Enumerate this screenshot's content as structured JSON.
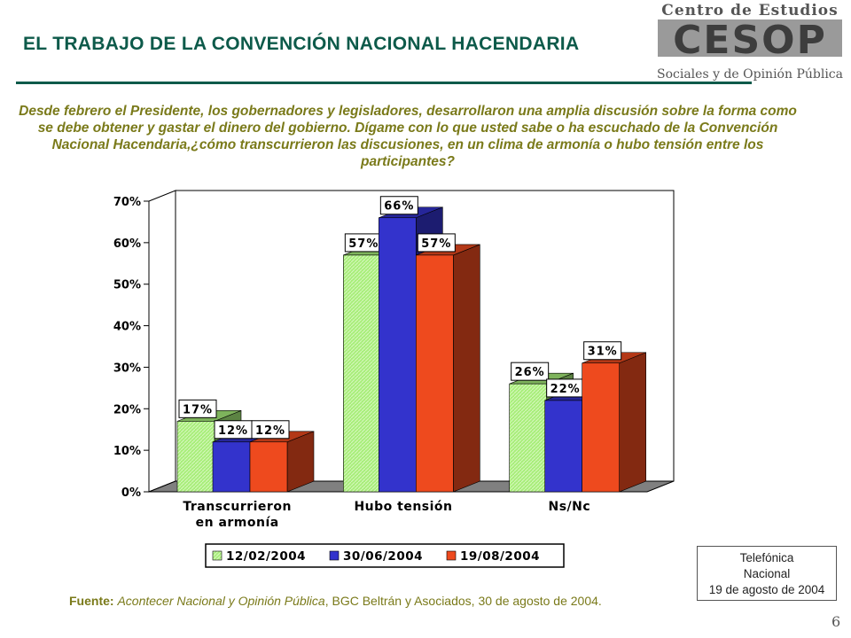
{
  "header": {
    "title": "EL TRABAJO DE LA CONVENCIÓN NACIONAL HACENDARIA",
    "logo_top": "Centro de Estudios",
    "logo_mark": "CESOP",
    "logo_bottom": "Sociales y de Opinión Pública"
  },
  "question": "Desde febrero el Presidente, los gobernadores y legisladores, desarrollaron una amplia discusión sobre la forma como se debe obtener y gastar el dinero del gobierno. Dígame con lo que usted sabe o ha escuchado de la Convención Nacional Hacendaria,¿cómo transcurrieron las discusiones, en un clima de armonía o hubo tensión entre los participantes?",
  "chart_data": {
    "type": "bar",
    "categories": [
      [
        "Transcurrieron",
        "en armonía"
      ],
      [
        "Hubo tensión"
      ],
      [
        "Ns/Nc"
      ]
    ],
    "series": [
      {
        "name": "12/02/2004",
        "values": [
          17,
          57,
          26
        ],
        "labels": [
          "17%",
          "57%",
          "26%"
        ],
        "color": "#a8ee7a"
      },
      {
        "name": "30/06/2004",
        "values": [
          12,
          66,
          22
        ],
        "labels": [
          "12%",
          "66%",
          "22%"
        ],
        "color": "#3333cc"
      },
      {
        "name": "19/08/2004",
        "values": [
          12,
          57,
          31
        ],
        "labels": [
          "12%",
          "57%",
          "31%"
        ],
        "color": "#ee4a1e"
      }
    ],
    "ylim": [
      0,
      70
    ],
    "yticks": [
      "0%",
      "10%",
      "20%",
      "30%",
      "40%",
      "50%",
      "60%",
      "70%"
    ],
    "grid": false,
    "legend_position": "bottom"
  },
  "footer": {
    "source_label": "Fuente:",
    "source_title": "Acontecer Nacional y Opinión Pública",
    "source_rest": ", BGC Beltrán y Asociados, 30 de agosto de 2004.",
    "note_line1": "Telefónica",
    "note_line2": "Nacional",
    "note_line3": "19 de agosto de 2004",
    "page_number": "6"
  }
}
